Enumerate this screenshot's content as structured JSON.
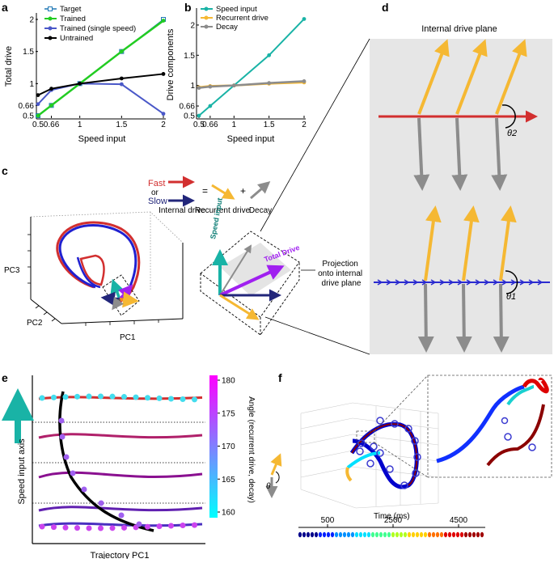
{
  "panels": {
    "a": {
      "label": "a",
      "ylabel": "Total drive",
      "xlabel": "Speed input",
      "xticks": [
        "0.5",
        "0.66",
        "1",
        "1.5",
        "2"
      ],
      "yticks": [
        "0.5",
        "0.66",
        "1",
        "1.5",
        "2"
      ],
      "legend": [
        "Target",
        "Trained",
        "Trained (single speed)",
        "Untrained"
      ]
    },
    "b": {
      "label": "b",
      "ylabel": "Drive components",
      "xlabel": "Speed input",
      "xticks": [
        "0.5",
        "0.66",
        "1",
        "1.5",
        "2"
      ],
      "yticks": [
        "0.5",
        "0.66",
        "1",
        "1.5",
        "2"
      ],
      "legend": [
        "Speed input",
        "Recurrent drive",
        "Decay"
      ]
    },
    "c": {
      "label": "c",
      "fast": "Fast",
      "or": "or",
      "slow": "Slow",
      "internal_drive": "Internal drive",
      "equals": "=",
      "plus": "+",
      "recurrent_drive": "Recurrent drive",
      "decay": "Decay",
      "pc1": "PC1",
      "pc2": "PC2",
      "pc3": "PC3",
      "speed_input": "Speed input",
      "total_drive": "Total Drive",
      "projection": "Projection onto internal drive plane"
    },
    "d": {
      "label": "d",
      "title": "Internal drive plane",
      "theta2": "θ2",
      "theta1": "θ1"
    },
    "e": {
      "label": "e",
      "ylabel": "Speed input axis",
      "xlabel": "Trajectory PC1",
      "colorbar_label": "Angle (recurrent drive, decay)",
      "colorbar_ticks": [
        "160",
        "165",
        "170",
        "175",
        "180"
      ],
      "theta": "θ"
    },
    "f": {
      "label": "f",
      "xlabel": "Time (ms)",
      "time_ticks": [
        "500",
        "2500",
        "4500"
      ]
    }
  },
  "colors": {
    "target": "#1f77b4",
    "trained": "#22cc22",
    "single": "#4a58c8",
    "untrained": "#000000",
    "speed": "#19b3a6",
    "recurrent": "#f5b833",
    "decay": "#8c8c8c",
    "fast": "#d22f2f",
    "slow": "#22267a",
    "purple": "#a020f0"
  },
  "chart_data": [
    {
      "type": "line",
      "panel": "a",
      "xlabel": "Speed input",
      "ylabel": "Total drive",
      "xlim": [
        0.5,
        2
      ],
      "ylim": [
        0.5,
        2
      ],
      "x": [
        0.5,
        0.66,
        1,
        1.5,
        2
      ],
      "series": [
        {
          "name": "Target",
          "values": [
            0.5,
            0.66,
            1,
            1.5,
            2
          ]
        },
        {
          "name": "Trained",
          "values": [
            0.5,
            0.66,
            1,
            1.5,
            1.98
          ]
        },
        {
          "name": "Trained (single speed)",
          "values": [
            0.68,
            0.9,
            1,
            0.99,
            0.53
          ]
        },
        {
          "name": "Untrained",
          "values": [
            0.82,
            0.92,
            1,
            1.08,
            1.15
          ]
        }
      ]
    },
    {
      "type": "line",
      "panel": "b",
      "xlabel": "Speed input",
      "ylabel": "Drive components",
      "xlim": [
        0.5,
        2
      ],
      "ylim": [
        0.5,
        2.2
      ],
      "x": [
        0.5,
        0.66,
        1,
        1.5,
        2
      ],
      "series": [
        {
          "name": "Speed input",
          "values": [
            0.5,
            0.66,
            1,
            1.5,
            2.1
          ]
        },
        {
          "name": "Recurrent drive",
          "values": [
            0.97,
            0.99,
            1,
            1.03,
            1.05
          ]
        },
        {
          "name": "Decay",
          "values": [
            0.96,
            0.98,
            1,
            1.04,
            1.07
          ]
        }
      ]
    }
  ]
}
